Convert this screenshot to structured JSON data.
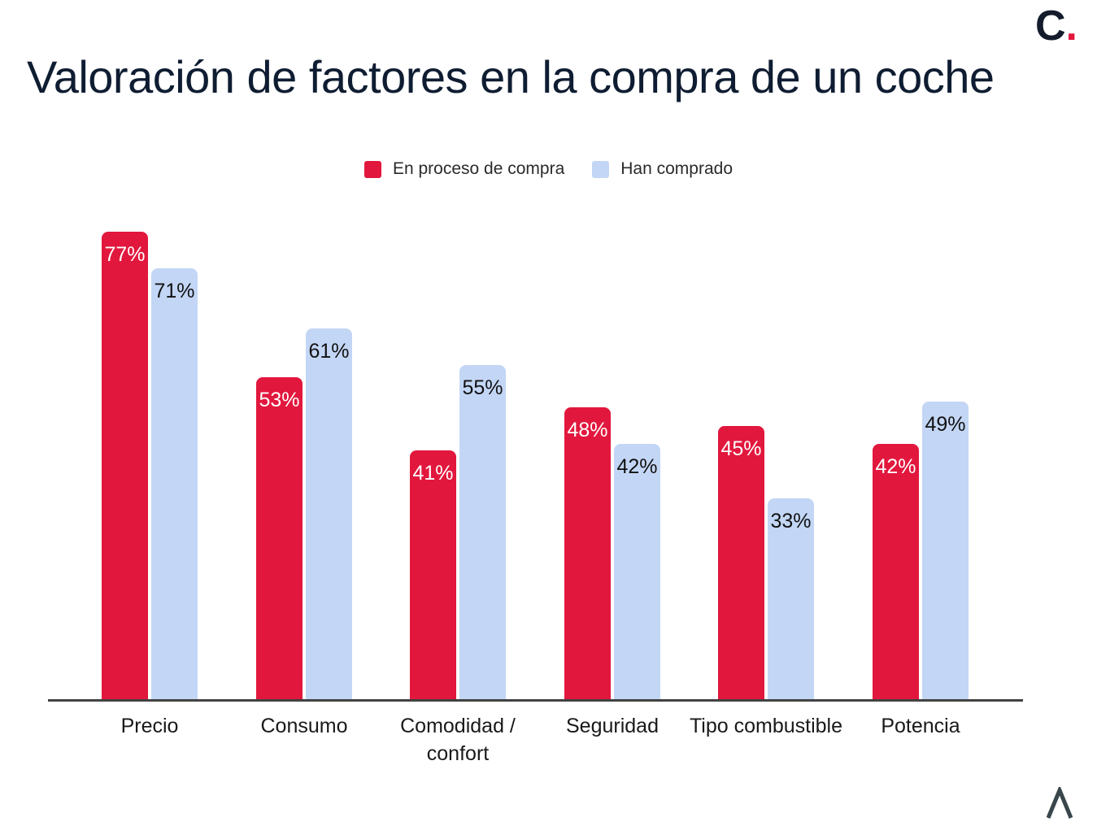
{
  "brand": {
    "logo_text": "C",
    "logo_dot": "."
  },
  "footer": {
    "logo_symbol": "caret-up-mark"
  },
  "chart_data": {
    "type": "bar",
    "title": "Valoración de factores en la compra de un coche",
    "categories": [
      "Precio",
      "Consumo",
      "Comodidad / confort",
      "Seguridad",
      "Tipo combustible",
      "Potencia"
    ],
    "series": [
      {
        "name": "En proceso de compra",
        "color": "#e2173d",
        "label_color": "#ffffff",
        "values": [
          77,
          53,
          41,
          48,
          45,
          42
        ]
      },
      {
        "name": "Han comprado",
        "color": "#c3d6f5",
        "label_color": "#111111",
        "values": [
          71,
          61,
          55,
          42,
          33,
          49
        ]
      }
    ],
    "value_suffix": "%",
    "data_labels": "inside-top",
    "ylim": [
      0,
      80
    ],
    "grid": false,
    "legend_position": "top-center",
    "axis_line_color": "#424242",
    "title_color": "#0f1d32"
  }
}
